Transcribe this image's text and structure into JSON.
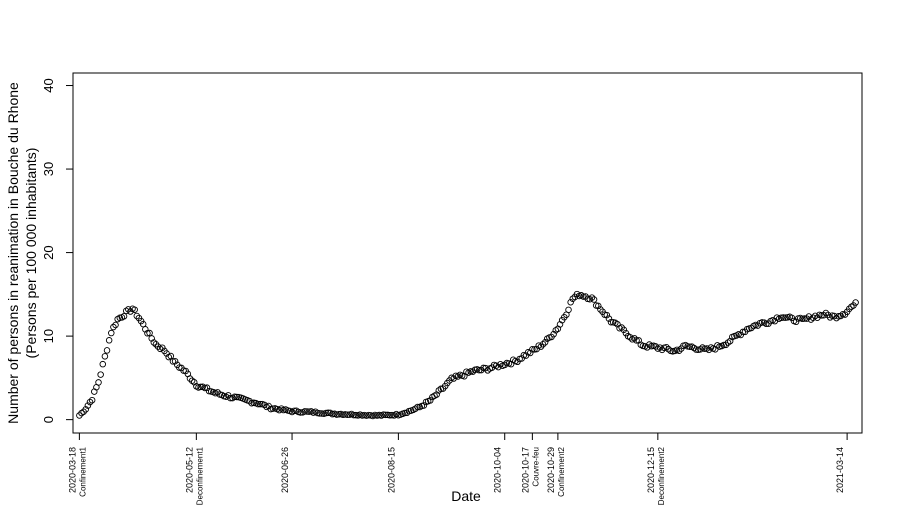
{
  "chart_data": {
    "type": "scatter",
    "xlabel": "Date",
    "ylabel_line1": "Number of persons in reanimation in Bouche du Rhone",
    "ylabel_line2": "(Persons per 100 000 inhabitants)",
    "x_start_date": "2020-03-18",
    "xlim": [
      "2020-03-15",
      "2021-03-21"
    ],
    "ylim": [
      -1.6,
      41.5
    ],
    "yticks": [
      0,
      10,
      20,
      30,
      40
    ],
    "date_ticks": [
      {
        "date": "2020-03-18",
        "label": "2020-03-18",
        "event": "Confinement1"
      },
      {
        "date": "2020-05-12",
        "label": "2020-05-12",
        "event": "Deconfinement1"
      },
      {
        "date": "2020-06-26",
        "label": "2020-06-26",
        "event": ""
      },
      {
        "date": "2020-08-15",
        "label": "2020-08-15",
        "event": ""
      },
      {
        "date": "2020-10-04",
        "label": "2020-10-04",
        "event": ""
      },
      {
        "date": "2020-10-17",
        "label": "2020-10-17",
        "event": "Couvre-feu"
      },
      {
        "date": "2020-10-29",
        "label": "2020-10-29",
        "event": "Confinement2"
      },
      {
        "date": "2020-12-15",
        "label": "2020-12-15",
        "event": "Deconfinement2"
      },
      {
        "date": "2021-03-14",
        "label": "2021-03-14",
        "event": ""
      }
    ],
    "series_keypoints": [
      [
        0,
        0.5
      ],
      [
        3,
        1.3
      ],
      [
        6,
        2.5
      ],
      [
        9,
        4.5
      ],
      [
        12,
        7.5
      ],
      [
        15,
        10.5
      ],
      [
        18,
        12.0
      ],
      [
        22,
        12.8
      ],
      [
        25,
        13.3
      ],
      [
        28,
        12.2
      ],
      [
        32,
        10.5
      ],
      [
        36,
        9.0
      ],
      [
        40,
        8.3
      ],
      [
        45,
        6.8
      ],
      [
        50,
        5.7
      ],
      [
        55,
        4.2
      ],
      [
        60,
        3.6
      ],
      [
        65,
        3.1
      ],
      [
        70,
        2.8
      ],
      [
        75,
        2.5
      ],
      [
        80,
        2.2
      ],
      [
        85,
        1.9
      ],
      [
        90,
        1.4
      ],
      [
        95,
        1.2
      ],
      [
        100,
        1.0
      ],
      [
        110,
        0.9
      ],
      [
        120,
        0.7
      ],
      [
        130,
        0.6
      ],
      [
        140,
        0.5
      ],
      [
        150,
        0.6
      ],
      [
        155,
        1.0
      ],
      [
        160,
        1.5
      ],
      [
        165,
        2.3
      ],
      [
        170,
        3.5
      ],
      [
        175,
        4.8
      ],
      [
        180,
        5.3
      ],
      [
        185,
        5.8
      ],
      [
        190,
        6.0
      ],
      [
        195,
        6.3
      ],
      [
        200,
        6.7
      ],
      [
        205,
        7.0
      ],
      [
        210,
        7.8
      ],
      [
        215,
        8.5
      ],
      [
        220,
        9.5
      ],
      [
        225,
        11.0
      ],
      [
        229,
        12.8
      ],
      [
        232,
        14.5
      ],
      [
        235,
        15.0
      ],
      [
        238,
        14.8
      ],
      [
        241,
        14.5
      ],
      [
        245,
        13.3
      ],
      [
        250,
        11.8
      ],
      [
        255,
        10.8
      ],
      [
        260,
        9.8
      ],
      [
        265,
        8.9
      ],
      [
        270,
        8.7
      ],
      [
        275,
        8.5
      ],
      [
        280,
        8.2
      ],
      [
        285,
        8.8
      ],
      [
        290,
        8.6
      ],
      [
        295,
        8.3
      ],
      [
        300,
        8.7
      ],
      [
        305,
        9.3
      ],
      [
        310,
        10.2
      ],
      [
        315,
        11.0
      ],
      [
        320,
        11.5
      ],
      [
        325,
        11.8
      ],
      [
        330,
        12.4
      ],
      [
        335,
        12.0
      ],
      [
        340,
        11.9
      ],
      [
        345,
        12.3
      ],
      [
        350,
        12.6
      ],
      [
        355,
        12.3
      ],
      [
        360,
        12.8
      ],
      [
        363,
        13.5
      ],
      [
        365,
        13.8
      ]
    ]
  }
}
